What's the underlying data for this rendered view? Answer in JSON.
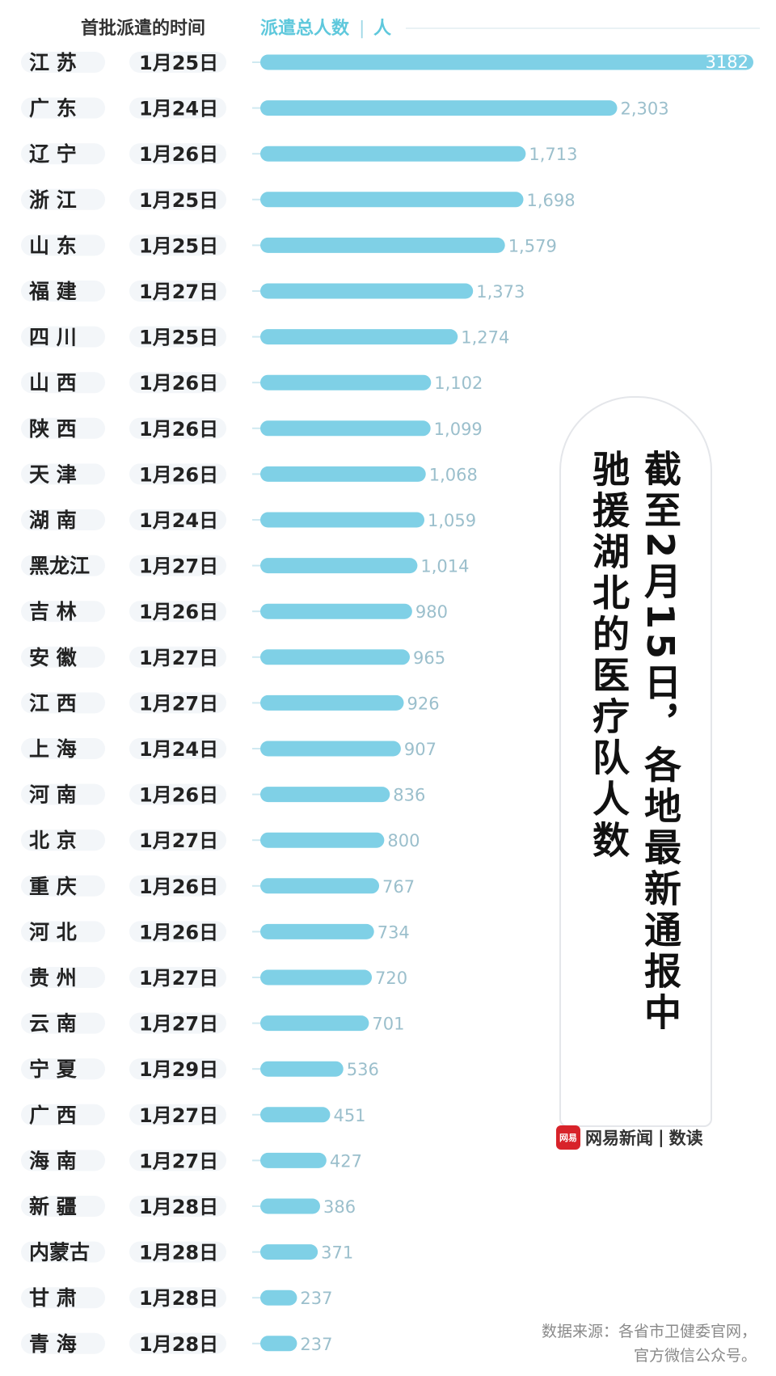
{
  "chart_data": {
    "type": "bar",
    "orientation": "horizontal",
    "column_headers": {
      "time": "首批派遣的时间",
      "total": "派遣总人数",
      "unit": "人"
    },
    "rows": [
      {
        "province": "江 苏",
        "date": "1月25日",
        "value": 3182,
        "label": "3182"
      },
      {
        "province": "广 东",
        "date": "1月24日",
        "value": 2303,
        "label": "2,303"
      },
      {
        "province": "辽 宁",
        "date": "1月26日",
        "value": 1713,
        "label": "1,713"
      },
      {
        "province": "浙 江",
        "date": "1月25日",
        "value": 1698,
        "label": "1,698"
      },
      {
        "province": "山 东",
        "date": "1月25日",
        "value": 1579,
        "label": "1,579"
      },
      {
        "province": "福 建",
        "date": "1月27日",
        "value": 1373,
        "label": "1,373"
      },
      {
        "province": "四 川",
        "date": "1月25日",
        "value": 1274,
        "label": "1,274"
      },
      {
        "province": "山 西",
        "date": "1月26日",
        "value": 1102,
        "label": "1,102"
      },
      {
        "province": "陕 西",
        "date": "1月26日",
        "value": 1099,
        "label": "1,099"
      },
      {
        "province": "天 津",
        "date": "1月26日",
        "value": 1068,
        "label": "1,068"
      },
      {
        "province": "湖 南",
        "date": "1月24日",
        "value": 1059,
        "label": "1,059"
      },
      {
        "province": "黑龙江",
        "date": "1月27日",
        "value": 1014,
        "label": "1,014"
      },
      {
        "province": "吉 林",
        "date": "1月26日",
        "value": 980,
        "label": "980"
      },
      {
        "province": "安 徽",
        "date": "1月27日",
        "value": 965,
        "label": "965"
      },
      {
        "province": "江 西",
        "date": "1月27日",
        "value": 926,
        "label": "926"
      },
      {
        "province": "上 海",
        "date": "1月24日",
        "value": 907,
        "label": "907"
      },
      {
        "province": "河 南",
        "date": "1月26日",
        "value": 836,
        "label": "836"
      },
      {
        "province": "北 京",
        "date": "1月27日",
        "value": 800,
        "label": "800"
      },
      {
        "province": "重 庆",
        "date": "1月26日",
        "value": 767,
        "label": "767"
      },
      {
        "province": "河 北",
        "date": "1月26日",
        "value": 734,
        "label": "734"
      },
      {
        "province": "贵 州",
        "date": "1月27日",
        "value": 720,
        "label": "720"
      },
      {
        "province": "云 南",
        "date": "1月27日",
        "value": 701,
        "label": "701"
      },
      {
        "province": "宁 夏",
        "date": "1月29日",
        "value": 536,
        "label": "536"
      },
      {
        "province": "广 西",
        "date": "1月27日",
        "value": 451,
        "label": "451"
      },
      {
        "province": "海 南",
        "date": "1月27日",
        "value": 427,
        "label": "427"
      },
      {
        "province": "新 疆",
        "date": "1月28日",
        "value": 386,
        "label": "386"
      },
      {
        "province": "内蒙古",
        "date": "1月28日",
        "value": 371,
        "label": "371"
      },
      {
        "province": "甘 肃",
        "date": "1月28日",
        "value": 237,
        "label": "237"
      },
      {
        "province": "青 海",
        "date": "1月28日",
        "value": 237,
        "label": "237"
      }
    ],
    "max_value": 3182,
    "bar_color": "#7fd0e6",
    "grid": false,
    "legend": "none"
  },
  "title": {
    "line1": "截至2月15日，各地最新通报中",
    "line2": "驰援湖北的医疗队人数"
  },
  "brand": {
    "logo_text": "网易",
    "name": "网易新闻",
    "sub": "数读"
  },
  "source": {
    "line1": "数据来源：各省市卫健委官网，",
    "line2": "官方微信公众号。"
  },
  "colors": {
    "bar": "#7fd0e6",
    "header_accent": "#5ec8dc",
    "brand_red": "#d8232a"
  }
}
